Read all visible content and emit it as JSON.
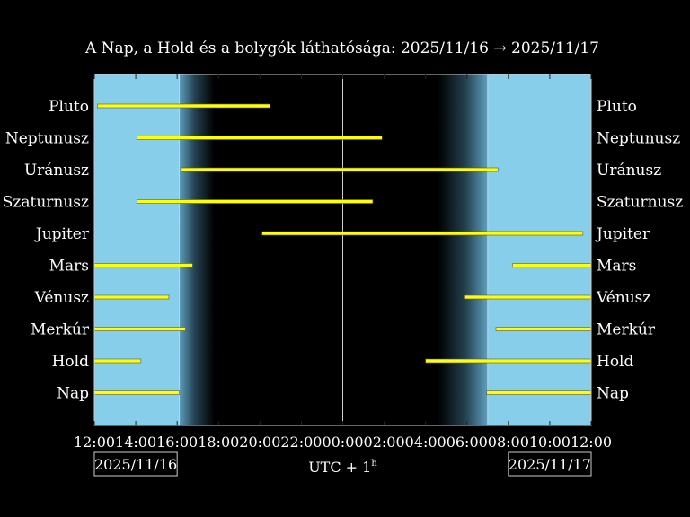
{
  "chart_data": {
    "type": "gantt",
    "title": "A Nap, a Hold és a bolygók láthatósága: 2025/11/16 → 2025/11/17",
    "x_axis": {
      "min_hours": 0,
      "max_hours": 24,
      "origin_time": "12:00",
      "tick_labels": [
        "12:00",
        "14:00",
        "16:00",
        "18:00",
        "20:00",
        "22:00",
        "00:00",
        "02:00",
        "04:00",
        "06:00",
        "08:00",
        "10:00",
        "12:00"
      ],
      "xlabel": "UTC + 1",
      "xlabel_superscript": "h",
      "date_left": "2025/11/16",
      "date_right": "2025/11/17"
    },
    "twilight": {
      "sunset_hours": 4.1,
      "dark_from_hours": 5.8,
      "dark_until_hours": 16.6,
      "sunrise_hours": 19.0,
      "midnight_hours": 12.0
    },
    "colors": {
      "day": "#87ceeb",
      "night": "#000000",
      "bar": "#ffff00",
      "bar_outline": "#555555",
      "line": "#d0d0d0"
    },
    "bodies": [
      {
        "name": "Pluto",
        "intervals": [
          [
            0.15,
            8.5
          ]
        ]
      },
      {
        "name": "Neptunusz",
        "intervals": [
          [
            2.05,
            13.9
          ]
        ]
      },
      {
        "name": "Uránusz",
        "intervals": [
          [
            4.2,
            19.5
          ]
        ]
      },
      {
        "name": "Szaturnusz",
        "intervals": [
          [
            2.05,
            13.45
          ]
        ]
      },
      {
        "name": "Jupiter",
        "intervals": [
          [
            8.1,
            23.6
          ]
        ]
      },
      {
        "name": "Mars",
        "intervals": [
          [
            0.0,
            4.75
          ],
          [
            20.2,
            24.0
          ]
        ]
      },
      {
        "name": "Vénusz",
        "intervals": [
          [
            0.0,
            3.6
          ],
          [
            17.9,
            24.0
          ]
        ]
      },
      {
        "name": "Merkúr",
        "intervals": [
          [
            0.0,
            4.4
          ],
          [
            19.4,
            24.0
          ]
        ]
      },
      {
        "name": "Hold",
        "intervals": [
          [
            0.0,
            2.25
          ],
          [
            16.0,
            24.0
          ]
        ]
      },
      {
        "name": "Nap",
        "intervals": [
          [
            0.0,
            4.1
          ],
          [
            18.95,
            24.0
          ]
        ]
      }
    ]
  }
}
